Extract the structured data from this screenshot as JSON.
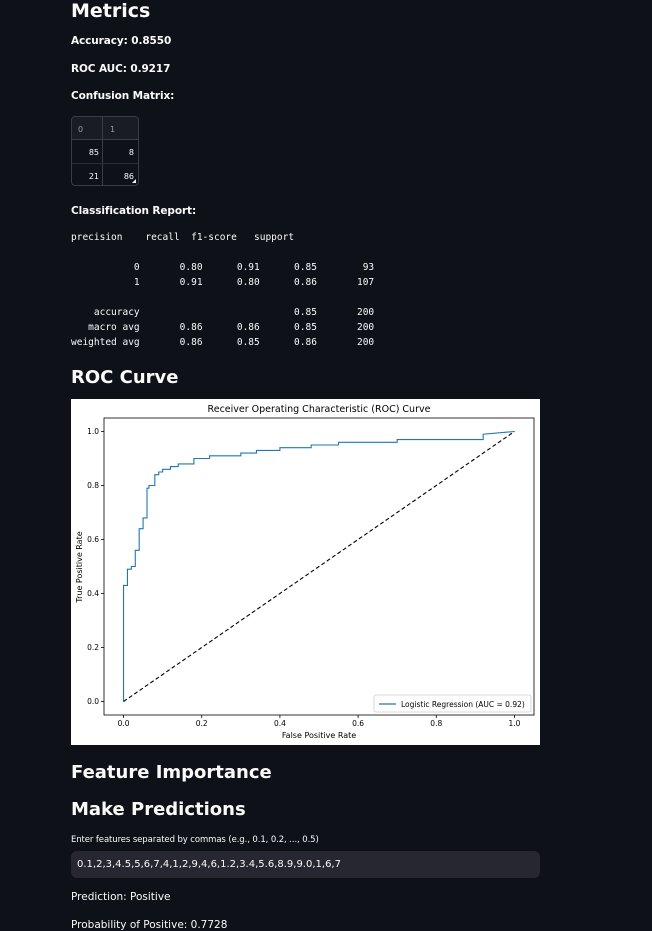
{
  "metrics": {
    "heading": "Metrics",
    "accuracy": "Accuracy: 0.8550",
    "roc_auc": "ROC AUC: 0.9217",
    "confusion_label": "Confusion Matrix:",
    "confusion": {
      "columns": [
        "0",
        "1"
      ],
      "rows": [
        [
          "85",
          "8"
        ],
        [
          "21",
          "86"
        ]
      ]
    },
    "report_label": "Classification Report:",
    "report_text": "precision    recall  f1-score   support\n\n           0       0.80      0.91      0.85        93\n           1       0.91      0.80      0.86       107\n\n    accuracy                           0.85       200\n   macro avg       0.86      0.86      0.85       200\nweighted avg       0.86      0.85      0.86       200"
  },
  "roc": {
    "heading": "ROC Curve"
  },
  "chart_data": {
    "type": "line",
    "title": "Receiver Operating Characteristic (ROC) Curve",
    "xlabel": "False Positive Rate",
    "ylabel": "True Positive Rate",
    "xlim": [
      -0.05,
      1.05
    ],
    "ylim": [
      -0.05,
      1.05
    ],
    "xticks": [
      "0.0",
      "0.2",
      "0.4",
      "0.6",
      "0.8",
      "1.0"
    ],
    "yticks": [
      "0.0",
      "0.2",
      "0.4",
      "0.6",
      "0.8",
      "1.0"
    ],
    "grid": false,
    "legend_position": "lower right",
    "series": [
      {
        "name": "Logistic Regression (AUC = 0.92)",
        "color": "#1f77b4",
        "style": "step",
        "x": [
          0.0,
          0.0,
          0.01,
          0.01,
          0.02,
          0.02,
          0.03,
          0.03,
          0.04,
          0.04,
          0.05,
          0.05,
          0.06,
          0.06,
          0.065,
          0.065,
          0.08,
          0.08,
          0.09,
          0.09,
          0.1,
          0.1,
          0.12,
          0.12,
          0.14,
          0.14,
          0.18,
          0.18,
          0.22,
          0.22,
          0.3,
          0.3,
          0.34,
          0.34,
          0.4,
          0.4,
          0.48,
          0.48,
          0.55,
          0.55,
          0.7,
          0.7,
          0.92,
          0.92,
          1.0
        ],
        "y": [
          0.0,
          0.43,
          0.43,
          0.49,
          0.49,
          0.5,
          0.5,
          0.56,
          0.56,
          0.64,
          0.64,
          0.68,
          0.68,
          0.79,
          0.79,
          0.8,
          0.8,
          0.84,
          0.84,
          0.85,
          0.85,
          0.86,
          0.86,
          0.87,
          0.87,
          0.88,
          0.88,
          0.9,
          0.9,
          0.91,
          0.91,
          0.92,
          0.92,
          0.93,
          0.93,
          0.94,
          0.94,
          0.95,
          0.95,
          0.96,
          0.96,
          0.97,
          0.97,
          0.99,
          1.0
        ]
      },
      {
        "name": "",
        "color": "#000000",
        "style": "dashed",
        "x": [
          0.0,
          1.0
        ],
        "y": [
          0.0,
          1.0
        ]
      }
    ]
  },
  "feature": {
    "heading": "Feature Importance"
  },
  "predict": {
    "heading": "Make Predictions",
    "input_label": "Enter features separated by commas (e.g., 0.1, 0.2, ..., 0.5)",
    "input_value": "0.1,2,3,4.5,5,6,7,4,1,2,9,4,6,1.2,3.4,5.6,8.9,9.0,1,6,7",
    "prediction": "Prediction: Positive",
    "probability": "Probability of Positive: 0.7728"
  }
}
